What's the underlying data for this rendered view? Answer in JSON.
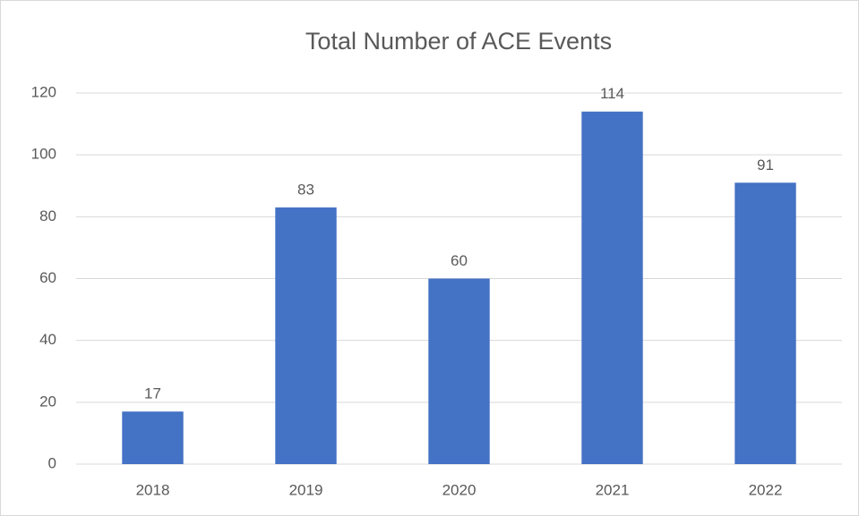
{
  "chart_data": {
    "type": "bar",
    "title": "Total Number of ACE Events",
    "categories": [
      "2018",
      "2019",
      "2020",
      "2021",
      "2022"
    ],
    "values": [
      17,
      83,
      60,
      114,
      91
    ],
    "color": "#4472c4",
    "ylim": [
      0,
      120
    ],
    "yticks": [
      0,
      20,
      40,
      60,
      80,
      100,
      120
    ],
    "grid": true,
    "data_labels": true
  }
}
